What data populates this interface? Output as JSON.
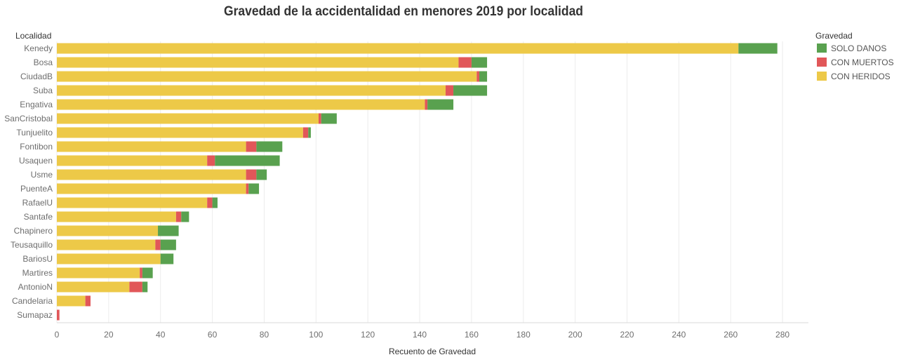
{
  "chart_data": {
    "type": "bar",
    "orientation": "horizontal",
    "stacked": true,
    "title": "Gravedad de la accidentalidad en menores 2019 por localidad",
    "ylabel": "Localidad",
    "xlabel": "Recuento de Gravedad",
    "xlim": [
      0,
      290
    ],
    "xticks": [
      0,
      20,
      40,
      60,
      80,
      100,
      120,
      140,
      160,
      180,
      200,
      220,
      240,
      260,
      280
    ],
    "grid": true,
    "legend": {
      "title": "Gravedad",
      "placement": "right",
      "entries": [
        "SOLO DANOS",
        "CON MUERTOS",
        "CON HERIDOS"
      ]
    },
    "categories": [
      "Kenedy",
      "Bosa",
      "CiudadB",
      "Suba",
      "Engativa",
      "SanCristobal",
      "Tunjuelito",
      "Fontibon",
      "Usaquen",
      "Usme",
      "PuenteA",
      "RafaelU",
      "Santafe",
      "Chapinero",
      "Teusaquillo",
      "BariosU",
      "Martires",
      "AntonioN",
      "Candelaria",
      "Sumapaz"
    ],
    "series": [
      {
        "name": "CON HERIDOS",
        "color": "#edc948",
        "values": [
          263,
          155,
          162,
          150,
          142,
          101,
          95,
          73,
          58,
          73,
          73,
          58,
          46,
          39,
          38,
          40,
          32,
          28,
          11,
          0
        ]
      },
      {
        "name": "CON MUERTOS",
        "color": "#e15759",
        "values": [
          0,
          5,
          1,
          3,
          1,
          1,
          2,
          4,
          3,
          4,
          1,
          2,
          2,
          0,
          2,
          0,
          1,
          5,
          2,
          1
        ]
      },
      {
        "name": "SOLO DANOS",
        "color": "#59a14f",
        "values": [
          15,
          6,
          3,
          13,
          10,
          6,
          1,
          10,
          25,
          4,
          4,
          2,
          3,
          8,
          6,
          5,
          4,
          2,
          0,
          0
        ]
      }
    ]
  }
}
